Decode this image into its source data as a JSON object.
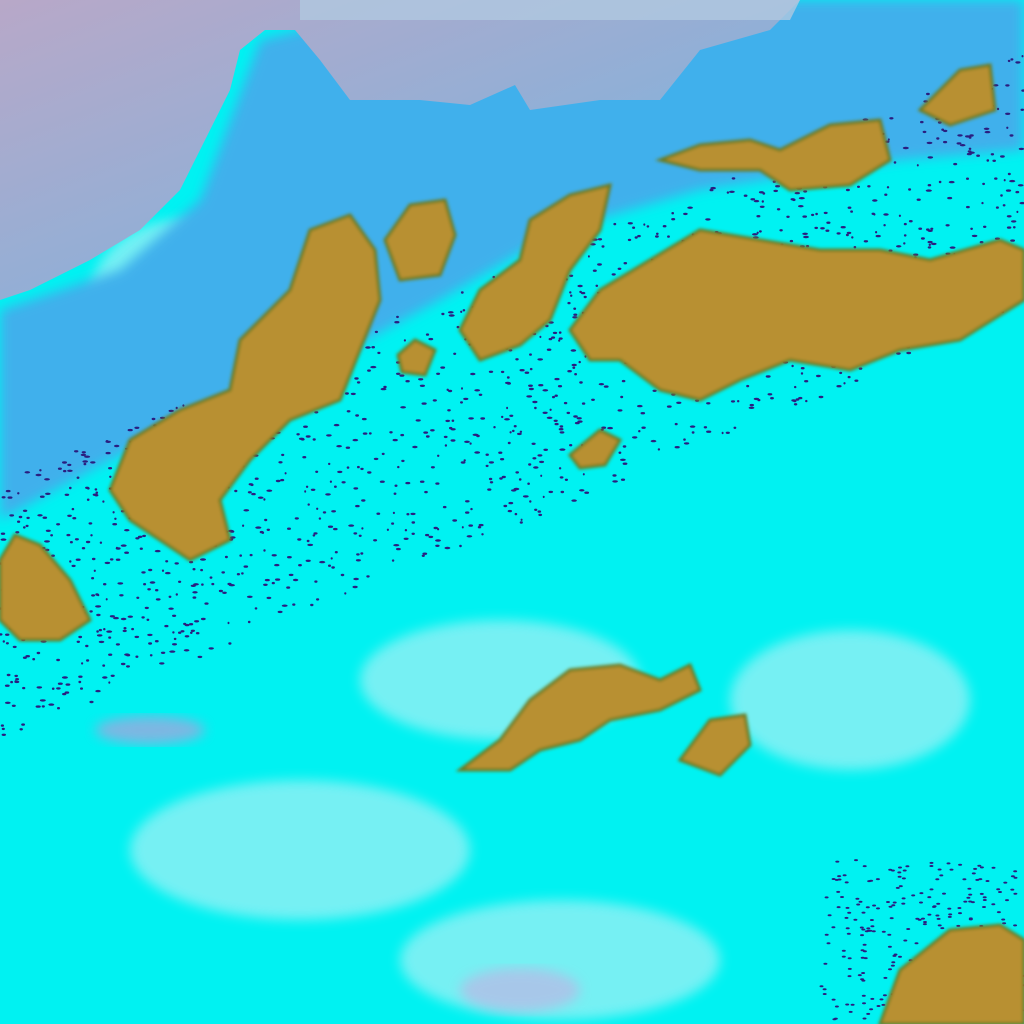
{
  "image": {
    "kind": "false-color satellite imagery",
    "colors": {
      "cloud_cyan": "#00f4f4",
      "cloud_light": "#b8f4f8",
      "sea_haze": "#7fb0d8",
      "sea_pink": "#b8a8c8",
      "coast_blue": "#3aa0e8",
      "land_mustard": "#b89030",
      "land_dark": "#7a6a20",
      "speckle": "#302080",
      "pink_patch": "#d090d8"
    }
  }
}
